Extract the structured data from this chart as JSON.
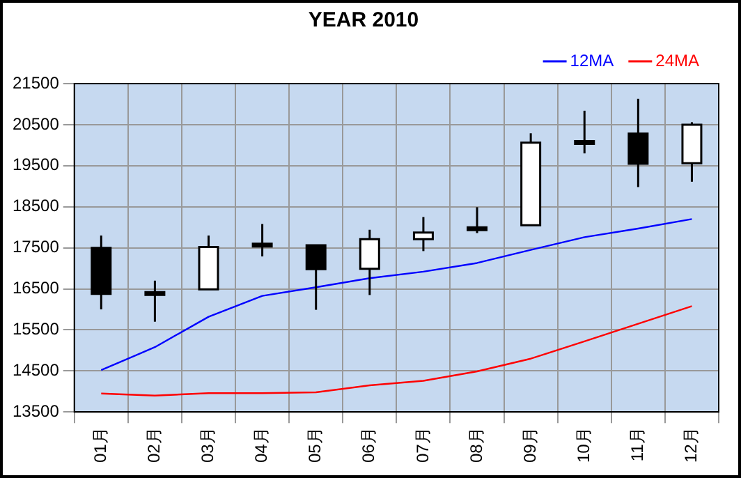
{
  "chart_data": {
    "type": "candlestick",
    "title": "YEAR 2010",
    "categories": [
      "01月",
      "02月",
      "03月",
      "04月",
      "05月",
      "06月",
      "07月",
      "08月",
      "09月",
      "10月",
      "11月",
      "12月"
    ],
    "ohlc": [
      [
        17500,
        17800,
        16000,
        16380
      ],
      [
        16420,
        16700,
        15700,
        16380
      ],
      [
        16490,
        17800,
        16490,
        17520
      ],
      [
        17600,
        18080,
        17290,
        17550
      ],
      [
        17560,
        17560,
        15990,
        16980
      ],
      [
        16990,
        17940,
        16350,
        17710
      ],
      [
        17710,
        18250,
        17420,
        17870
      ],
      [
        18000,
        18490,
        17860,
        17960
      ],
      [
        18050,
        20290,
        18050,
        20060
      ],
      [
        20100,
        20840,
        19800,
        20060
      ],
      [
        20280,
        21130,
        18980,
        19550
      ],
      [
        19560,
        20560,
        19110,
        20500
      ]
    ],
    "colors": [
      "#000000",
      "#000000",
      "#ffffff",
      "#000000",
      "#000000",
      "#ffffff",
      "#ffffff",
      "#000000",
      "#ffffff",
      "#000000",
      "#000000",
      "#ffffff"
    ],
    "series": [
      {
        "name": "12MA",
        "type": "line",
        "color": "#0000ff",
        "values": [
          14520,
          15080,
          15820,
          16330,
          16540,
          16760,
          16920,
          17130,
          17450,
          17760,
          17970,
          18200
        ]
      },
      {
        "name": "24MA",
        "type": "line",
        "color": "#ff0000",
        "values": [
          13950,
          13900,
          13960,
          13960,
          13980,
          14150,
          14260,
          14490,
          14800,
          15220,
          15650,
          16080
        ]
      }
    ],
    "ylim": [
      13500,
      21500
    ],
    "yticks": [
      13500,
      14500,
      15500,
      16500,
      17500,
      18500,
      19500,
      20500,
      21500
    ],
    "grid": true,
    "legend": "top right"
  }
}
